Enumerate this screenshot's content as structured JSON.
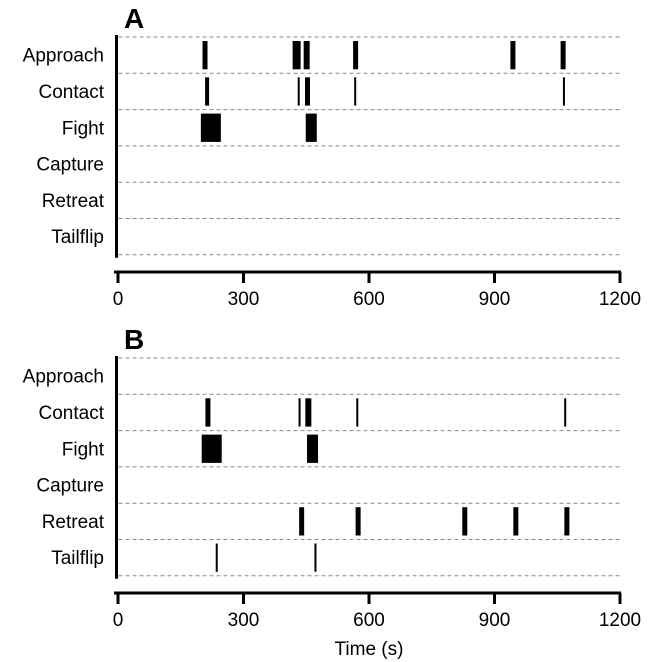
{
  "chart_data": [
    {
      "type": "event-raster",
      "panel_label": "A",
      "categories": [
        "Approach",
        "Contact",
        "Fight",
        "Capture",
        "Retreat",
        "Tailflip"
      ],
      "xlim": [
        0,
        1200
      ],
      "xticks": [
        0,
        300,
        600,
        900,
        1200
      ],
      "xlabel": "",
      "grid": "dashed horizontal lines between rows",
      "events": [
        {
          "category": "Approach",
          "x": 208,
          "width": 5
        },
        {
          "category": "Approach",
          "x": 427,
          "width": 8
        },
        {
          "category": "Approach",
          "x": 451,
          "width": 6
        },
        {
          "category": "Approach",
          "x": 568,
          "width": 5
        },
        {
          "category": "Approach",
          "x": 944,
          "width": 5
        },
        {
          "category": "Approach",
          "x": 1064,
          "width": 5
        },
        {
          "category": "Contact",
          "x": 213,
          "width": 4
        },
        {
          "category": "Contact",
          "x": 432,
          "width": 2
        },
        {
          "category": "Contact",
          "x": 453,
          "width": 5
        },
        {
          "category": "Contact",
          "x": 567,
          "width": 2
        },
        {
          "category": "Contact",
          "x": 1066,
          "width": 2
        },
        {
          "category": "Fight",
          "x": 222,
          "width": 20
        },
        {
          "category": "Fight",
          "x": 462,
          "width": 11
        }
      ]
    },
    {
      "type": "event-raster",
      "panel_label": "B",
      "categories": [
        "Approach",
        "Contact",
        "Fight",
        "Capture",
        "Retreat",
        "Tailflip"
      ],
      "xlim": [
        0,
        1200
      ],
      "xticks": [
        0,
        300,
        600,
        900,
        1200
      ],
      "xlabel": "Time (s)",
      "grid": "dashed horizontal lines between rows",
      "events": [
        {
          "category": "Contact",
          "x": 215,
          "width": 5
        },
        {
          "category": "Contact",
          "x": 434,
          "width": 2
        },
        {
          "category": "Contact",
          "x": 455,
          "width": 6
        },
        {
          "category": "Contact",
          "x": 572,
          "width": 2
        },
        {
          "category": "Contact",
          "x": 1069,
          "width": 2
        },
        {
          "category": "Fight",
          "x": 224,
          "width": 20
        },
        {
          "category": "Fight",
          "x": 465,
          "width": 11
        },
        {
          "category": "Retreat",
          "x": 439,
          "width": 5
        },
        {
          "category": "Retreat",
          "x": 574,
          "width": 5
        },
        {
          "category": "Retreat",
          "x": 829,
          "width": 5
        },
        {
          "category": "Retreat",
          "x": 951,
          "width": 5
        },
        {
          "category": "Retreat",
          "x": 1073,
          "width": 5
        },
        {
          "category": "Tailflip",
          "x": 236,
          "width": 2
        },
        {
          "category": "Tailflip",
          "x": 472,
          "width": 2
        }
      ]
    }
  ],
  "colors": {
    "event": "#000000",
    "axis": "#000000",
    "grid": "#8a8a8a"
  }
}
